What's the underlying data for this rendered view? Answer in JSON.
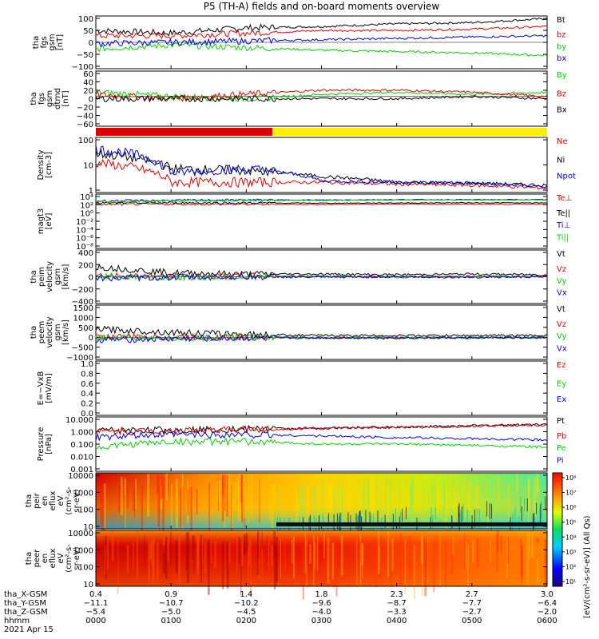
{
  "title": "P5 (TH-A) fields and on-board moments overview",
  "colors": {
    "black": "#000000",
    "red": "#e00000",
    "blue": "#0000e0",
    "green": "#00d000",
    "yellow": "#ffee00"
  },
  "chart_data": [
    {
      "type": "line",
      "panel": "fgs_gsm",
      "ylabel": [
        "tha",
        "fgs",
        "gsm",
        "[nT]"
      ],
      "ylim": [
        -100,
        100
      ],
      "ticks": [
        "100",
        "50",
        "0",
        "−50",
        "−100"
      ],
      "series": [
        {
          "name": "Bt",
          "color": "black",
          "x": [
            0,
            1,
            2,
            3,
            4,
            5,
            6
          ],
          "values": [
            45,
            35,
            55,
            60,
            70,
            75,
            90
          ]
        },
        {
          "name": "bz",
          "color": "red",
          "x": [
            0,
            1,
            2,
            3,
            4,
            5,
            6
          ],
          "values": [
            25,
            25,
            35,
            45,
            45,
            50,
            60
          ]
        },
        {
          "name": "by",
          "color": "green",
          "x": [
            0,
            1,
            2,
            3,
            4,
            5,
            6
          ],
          "values": [
            -25,
            -10,
            -20,
            -30,
            -35,
            -40,
            -50
          ]
        },
        {
          "name": "bx",
          "color": "blue",
          "x": [
            0,
            1,
            2,
            3,
            4,
            5,
            6
          ],
          "values": [
            -5,
            0,
            5,
            10,
            15,
            20,
            25
          ]
        }
      ]
    },
    {
      "type": "line",
      "panel": "fgs_gsm_detrended",
      "ylabel": [
        "tha",
        "fgs",
        "gsm",
        "dtrnd",
        "[nT]"
      ],
      "ylim": [
        -70,
        60
      ],
      "ticks": [
        "60",
        "40",
        "20",
        "0",
        "−20",
        "−40",
        "−60"
      ],
      "series": [
        {
          "name": "By",
          "color": "green",
          "x": [
            0,
            1,
            2,
            3,
            4,
            5,
            6
          ],
          "values": [
            10,
            0,
            -5,
            5,
            10,
            5,
            10
          ]
        },
        {
          "name": "Bz",
          "color": "red",
          "x": [
            0,
            1,
            2,
            3,
            4,
            5,
            6
          ],
          "values": [
            5,
            -5,
            5,
            15,
            15,
            10,
            0
          ]
        },
        {
          "name": "Bx",
          "color": "black",
          "x": [
            0,
            1,
            2,
            3,
            4,
            5,
            6
          ],
          "values": [
            -5,
            -5,
            -5,
            -5,
            -5,
            0,
            -5
          ]
        }
      ]
    },
    {
      "type": "bar",
      "panel": "mode_bar",
      "segments": [
        {
          "color": "red",
          "x": [
            0,
            2.35
          ]
        },
        {
          "color": "yellow",
          "x": [
            2.35,
            6
          ]
        }
      ]
    },
    {
      "type": "line",
      "panel": "density",
      "scale": "log",
      "ylabel": [
        "Density",
        "[cm-3]"
      ],
      "ylim": [
        0.3,
        200
      ],
      "ticks": [
        "100",
        "10",
        "1"
      ],
      "series": [
        {
          "name": "Ne",
          "color": "red",
          "x": [
            0,
            1,
            2,
            3,
            4,
            5,
            6
          ],
          "values": [
            10,
            1,
            1,
            1,
            0.8,
            0.7,
            0.5
          ]
        },
        {
          "name": "Ni",
          "color": "black",
          "x": [
            0,
            1,
            2,
            3,
            4,
            5,
            6
          ],
          "values": [
            30,
            5,
            4,
            2,
            1,
            0.9,
            0.7
          ]
        },
        {
          "name": "Npot",
          "color": "blue",
          "x": [
            0,
            1,
            2,
            3,
            4,
            5,
            6
          ],
          "values": [
            50,
            3,
            5,
            1.2,
            1,
            0.9,
            0.6
          ]
        }
      ]
    },
    {
      "type": "line",
      "panel": "temperature",
      "scale": "log",
      "ylabel": [
        "magt3",
        "[eV]"
      ],
      "ylim": [
        1e-08,
        10000.0
      ],
      "ticks": [
        "10⁴",
        "10²",
        "10⁰",
        "10⁻²",
        "10⁻⁴",
        "10⁻⁶",
        "10⁻⁸"
      ],
      "series": [
        {
          "name": "Te⊥",
          "color": "red",
          "x": [
            0,
            1,
            2,
            3,
            4,
            5,
            6
          ],
          "values": [
            50,
            60,
            55,
            50,
            60,
            55,
            60
          ]
        },
        {
          "name": "Te||",
          "color": "black",
          "x": [
            0,
            1,
            2,
            3,
            4,
            5,
            6
          ],
          "values": [
            100,
            120,
            110,
            100,
            110,
            120,
            110
          ]
        },
        {
          "name": "Ti⊥",
          "color": "blue",
          "x": [
            0,
            1,
            2,
            3,
            4,
            5,
            6
          ],
          "values": [
            300,
            400,
            500,
            500,
            600,
            600,
            600
          ]
        },
        {
          "name": "Ti||",
          "color": "green",
          "x": [
            0,
            1,
            2,
            3,
            4,
            5,
            6
          ],
          "values": [
            200,
            300,
            400,
            400,
            500,
            500,
            500
          ]
        }
      ]
    },
    {
      "type": "line",
      "panel": "ion_velocity",
      "ylabel": [
        "tha",
        "peim",
        "velocity",
        "gsm",
        "[km/s]"
      ],
      "ylim": [
        -400,
        400
      ],
      "ticks": [
        "400",
        "200",
        "0",
        "−200",
        "−400"
      ],
      "series": [
        {
          "name": "Vt",
          "color": "black",
          "x": [
            0,
            1,
            2,
            3,
            4,
            5,
            6
          ],
          "values": [
            150,
            60,
            40,
            40,
            30,
            40,
            30
          ]
        },
        {
          "name": "Vz",
          "color": "red",
          "x": [
            0,
            1,
            2,
            3,
            4,
            5,
            6
          ],
          "values": [
            20,
            0,
            10,
            5,
            0,
            5,
            0
          ]
        },
        {
          "name": "Vy",
          "color": "green",
          "x": [
            0,
            1,
            2,
            3,
            4,
            5,
            6
          ],
          "values": [
            10,
            -10,
            0,
            5,
            -5,
            0,
            5
          ]
        },
        {
          "name": "Vx",
          "color": "blue",
          "x": [
            0,
            1,
            2,
            3,
            4,
            5,
            6
          ],
          "values": [
            -20,
            -10,
            0,
            -5,
            0,
            -5,
            0
          ]
        }
      ]
    },
    {
      "type": "line",
      "panel": "electron_velocity",
      "ylabel": [
        "tha",
        "peem",
        "velocity",
        "gsm",
        "[km/s]"
      ],
      "ylim": [
        -1000,
        1500
      ],
      "ticks": [
        "1500",
        "1000",
        "500",
        "0",
        "−500",
        "−1000"
      ],
      "series": [
        {
          "name": "Vt",
          "color": "black",
          "x": [
            0,
            1,
            2,
            3,
            4,
            5,
            6
          ],
          "values": [
            400,
            250,
            150,
            100,
            100,
            100,
            100
          ]
        },
        {
          "name": "Vz",
          "color": "red",
          "x": [
            0,
            1,
            2,
            3,
            4,
            5,
            6
          ],
          "values": [
            50,
            20,
            10,
            0,
            10,
            0,
            10
          ]
        },
        {
          "name": "Vy",
          "color": "green",
          "x": [
            0,
            1,
            2,
            3,
            4,
            5,
            6
          ],
          "values": [
            0,
            -20,
            0,
            0,
            0,
            0,
            0
          ]
        },
        {
          "name": "Vx",
          "color": "blue",
          "x": [
            0,
            1,
            2,
            3,
            4,
            5,
            6
          ],
          "values": [
            -100,
            -50,
            -20,
            0,
            -10,
            0,
            0
          ]
        }
      ]
    },
    {
      "type": "line",
      "panel": "efield",
      "ylabel": [
        "E=−VxB",
        "[mV/m]"
      ],
      "ylim": [
        0,
        1
      ],
      "ticks": [
        "1.0",
        "0.8",
        "0.6",
        "0.4",
        "0.2",
        "0.0"
      ],
      "series": [
        {
          "name": "Ez",
          "color": "red",
          "x": [],
          "values": []
        },
        {
          "name": "Ey",
          "color": "green",
          "x": [],
          "values": []
        },
        {
          "name": "Ex",
          "color": "blue",
          "x": [],
          "values": []
        }
      ]
    },
    {
      "type": "line",
      "panel": "pressure",
      "scale": "log",
      "ylabel": [
        "Pressure",
        "[nPa]"
      ],
      "ylim": [
        0.001,
        10
      ],
      "ticks": [
        "10.000",
        "1.000",
        "0.100",
        "0.010",
        "0.001"
      ],
      "series": [
        {
          "name": "Pt",
          "color": "black",
          "x": [
            0,
            1,
            2,
            3,
            4,
            5,
            6
          ],
          "values": [
            1.0,
            1.1,
            1.3,
            1.5,
            1.8,
            2.2,
            3.0
          ]
        },
        {
          "name": "Pb",
          "color": "red",
          "x": [
            0,
            1,
            2,
            3,
            4,
            5,
            6
          ],
          "values": [
            0.8,
            1.0,
            1.2,
            1.4,
            1.7,
            2.0,
            2.6
          ]
        },
        {
          "name": "Pe",
          "color": "green",
          "x": [
            0,
            1,
            2,
            3,
            4,
            5,
            6
          ],
          "values": [
            0.05,
            0.15,
            0.15,
            0.1,
            0.1,
            0.08,
            0.06
          ]
        },
        {
          "name": "Pi",
          "color": "blue",
          "x": [
            0,
            1,
            2,
            3,
            4,
            5,
            6
          ],
          "values": [
            0.3,
            0.5,
            0.5,
            0.4,
            0.3,
            0.25,
            0.2
          ]
        }
      ]
    },
    {
      "type": "heatmap",
      "panel": "ion_spectrogram",
      "ylabel": [
        "tha",
        "peir",
        "en",
        "eflux",
        "eV",
        "(cm²-s-",
        "sr-eV)"
      ],
      "ylim": [
        10,
        10000
      ],
      "ticks": [
        "10000",
        "1000",
        "100",
        "10"
      ]
    },
    {
      "type": "heatmap",
      "panel": "electron_spectrogram",
      "ylabel": [
        "tha",
        "peer",
        "en",
        "eflux",
        "eV",
        "(cm²-s-",
        "sr-eV)"
      ],
      "ylim": [
        10,
        10000
      ],
      "ticks": [
        "10000",
        "1000",
        "100",
        "10"
      ]
    },
    {
      "type": "heatmap",
      "panel": "colorbar",
      "label": "[eV/(cm²-s-sr-eV)] (All Qs)",
      "ticks": [
        "10⁸",
        "10⁷",
        "10⁶",
        "10⁵",
        "10⁴",
        "10³",
        "10²",
        "10¹"
      ]
    }
  ],
  "x_axis": {
    "tick_hours": [
      0,
      1,
      2,
      3,
      4,
      5,
      6
    ],
    "row_labels": [
      "tha_X-GSM",
      "tha_Y-GSM",
      "tha_Z-GSM",
      "hhmm",
      "2021 Apr 15"
    ],
    "rows": [
      [
        "0.4",
        "0.9",
        "1.4",
        "1.8",
        "2.3",
        "2.7",
        "3.0"
      ],
      [
        "−11.1",
        "−10.7",
        "−10.2",
        "−9.6",
        "−8.7",
        "−7.7",
        "−6.4"
      ],
      [
        "−5.4",
        "−5.0",
        "−4.5",
        "−4.0",
        "−3.3",
        "−2.7",
        "−2.0"
      ],
      [
        "0000",
        "0100",
        "0200",
        "0300",
        "0400",
        "0500",
        "0600"
      ]
    ]
  }
}
